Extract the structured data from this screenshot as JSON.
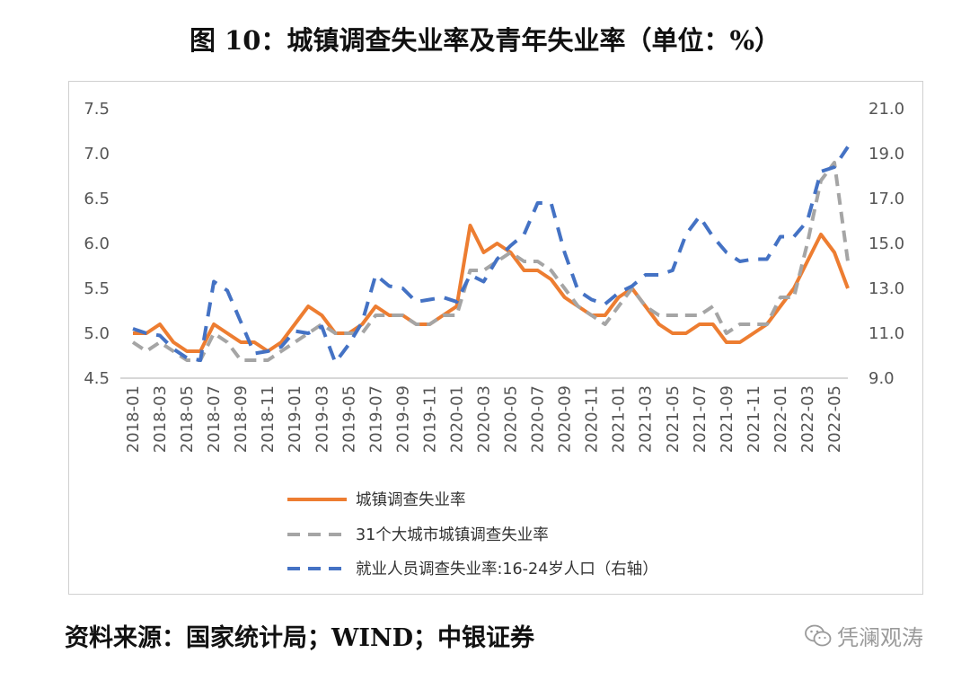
{
  "title": "图 10：城镇调查失业率及青年失业率（单位：%）",
  "footer": "资料来源：国家统计局；WIND；中银证券",
  "watermark": "凭澜观涛",
  "chart_data": {
    "type": "line",
    "x": [
      "2018-01",
      "2018-02",
      "2018-03",
      "2018-04",
      "2018-05",
      "2018-06",
      "2018-07",
      "2018-08",
      "2018-09",
      "2018-10",
      "2018-11",
      "2018-12",
      "2019-01",
      "2019-02",
      "2019-03",
      "2019-04",
      "2019-05",
      "2019-06",
      "2019-07",
      "2019-08",
      "2019-09",
      "2019-10",
      "2019-11",
      "2019-12",
      "2020-01",
      "2020-02",
      "2020-03",
      "2020-04",
      "2020-05",
      "2020-06",
      "2020-07",
      "2020-08",
      "2020-09",
      "2020-10",
      "2020-11",
      "2020-12",
      "2021-01",
      "2021-02",
      "2021-03",
      "2021-04",
      "2021-05",
      "2021-06",
      "2021-07",
      "2021-08",
      "2021-09",
      "2021-10",
      "2021-11",
      "2021-12",
      "2022-01",
      "2022-02",
      "2022-03",
      "2022-04",
      "2022-05",
      "2022-06"
    ],
    "x_tick_labels": [
      "2018-01",
      "2018-03",
      "2018-05",
      "2018-07",
      "2018-09",
      "2018-11",
      "2019-01",
      "2019-03",
      "2019-05",
      "2019-07",
      "2019-09",
      "2019-11",
      "2020-01",
      "2020-03",
      "2020-05",
      "2020-07",
      "2020-09",
      "2020-11",
      "2021-01",
      "2021-03",
      "2021-05",
      "2021-07",
      "2021-09",
      "2021-11",
      "2022-01",
      "2022-03",
      "2022-05"
    ],
    "y_left": {
      "min": 4.5,
      "max": 7.5,
      "ticks": [
        "4.5",
        "5.0",
        "5.5",
        "6.0",
        "6.5",
        "7.0",
        "7.5"
      ]
    },
    "y_right": {
      "min": 9.0,
      "max": 21.0,
      "ticks": [
        "9.0",
        "11.0",
        "13.0",
        "15.0",
        "17.0",
        "19.0",
        "21.0"
      ]
    },
    "series": [
      {
        "name": "城镇调查失业率",
        "axis": "left",
        "color": "#ed7d31",
        "dash": "solid",
        "values": [
          5.0,
          5.0,
          5.1,
          4.9,
          4.8,
          4.8,
          5.1,
          5.0,
          4.9,
          4.9,
          4.8,
          4.9,
          5.1,
          5.3,
          5.2,
          5.0,
          5.0,
          5.1,
          5.3,
          5.2,
          5.2,
          5.1,
          5.1,
          5.2,
          5.3,
          6.2,
          5.9,
          6.0,
          5.9,
          5.7,
          5.7,
          5.6,
          5.4,
          5.3,
          5.2,
          5.2,
          5.4,
          5.5,
          5.3,
          5.1,
          5.0,
          5.0,
          5.1,
          5.1,
          4.9,
          4.9,
          5.0,
          5.1,
          5.3,
          5.5,
          5.8,
          6.1,
          5.9,
          5.5
        ]
      },
      {
        "name": "31个大城市城镇调查失业率",
        "axis": "left",
        "color": "#a5a5a5",
        "dash": "dash",
        "values": [
          4.9,
          4.8,
          4.9,
          4.8,
          4.7,
          4.7,
          5.0,
          4.9,
          4.7,
          4.7,
          4.7,
          4.8,
          4.9,
          5.0,
          5.1,
          5.0,
          5.0,
          5.0,
          5.2,
          5.2,
          5.2,
          5.1,
          5.1,
          5.2,
          5.2,
          5.7,
          5.7,
          5.8,
          5.9,
          5.8,
          5.8,
          5.7,
          5.5,
          5.3,
          5.2,
          5.1,
          5.3,
          5.5,
          5.3,
          5.2,
          5.2,
          5.2,
          5.2,
          5.3,
          5.0,
          5.1,
          5.1,
          5.1,
          5.4,
          5.4,
          6.0,
          6.7,
          6.9,
          5.8
        ]
      },
      {
        "name": "就业人员调查失业率:16-24岁人口（右轴）",
        "axis": "right",
        "color": "#4472c4",
        "dash": "dash",
        "values": [
          11.2,
          11.0,
          10.9,
          10.3,
          9.9,
          9.8,
          13.3,
          12.9,
          11.5,
          10.1,
          10.2,
          10.4,
          11.1,
          11.0,
          11.3,
          9.7,
          10.5,
          11.5,
          13.6,
          13.1,
          13.0,
          12.4,
          12.5,
          12.6,
          12.4,
          13.6,
          13.3,
          14.3,
          14.9,
          15.4,
          16.8,
          16.8,
          14.6,
          12.9,
          12.5,
          12.3,
          12.8,
          13.1,
          13.6,
          13.6,
          13.8,
          15.4,
          16.2,
          15.3,
          14.6,
          14.2,
          14.3,
          14.3,
          15.3,
          15.3,
          16.0,
          18.2,
          18.4,
          19.3
        ]
      }
    ]
  }
}
